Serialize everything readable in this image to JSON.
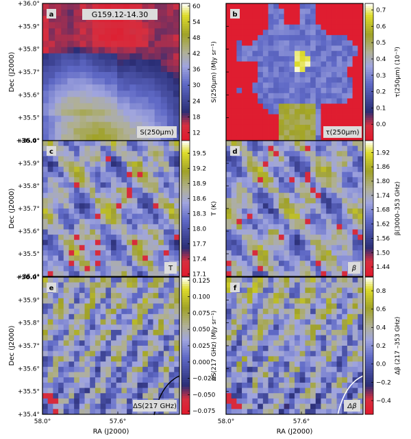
{
  "figure": {
    "bg": "#ffffff",
    "axis_labels": {
      "dec": "Dec (J2000)",
      "ra": "RA (J2000)"
    },
    "dec_ticks": [
      "+36.0°",
      "+35.9°",
      "+35.8°",
      "+35.7°",
      "+35.6°",
      "+35.5°",
      "+35.4°"
    ],
    "ra_ticks": [
      "58.0°",
      "57.6°"
    ]
  },
  "chart_data": [
    {
      "type": "heatmap",
      "panel": "a",
      "title": "G159.12-14.30",
      "map_label": "S(250μm)",
      "colorbar_label": "S(250μm) (MJy sr⁻¹)",
      "colorbar_ticks": [
        "60",
        "54",
        "48",
        "42",
        "36",
        "30",
        "24",
        "18",
        "12"
      ],
      "range": [
        9,
        61
      ],
      "pattern": "brightness_gradient"
    },
    {
      "type": "heatmap",
      "panel": "b",
      "map_label": "τ(250μm)",
      "colorbar_label": "τ(250μm) (10⁻³)",
      "colorbar_ticks": [
        "0.7",
        "0.6",
        "0.5",
        "0.4",
        "0.3",
        "0.2",
        "0.1",
        "0.0"
      ],
      "range": [
        -0.1,
        0.74
      ],
      "pattern": "tau_blob"
    },
    {
      "type": "heatmap",
      "panel": "c",
      "map_label": "T",
      "colorbar_label": "T (K)",
      "colorbar_ticks": [
        "19.5",
        "19.2",
        "18.9",
        "18.6",
        "18.3",
        "18.0",
        "17.7",
        "17.4",
        "17.1"
      ],
      "range": [
        17.05,
        19.75
      ],
      "pattern": "patchy"
    },
    {
      "type": "heatmap",
      "panel": "d",
      "map_label": "β",
      "colorbar_label": "β(3000–353 GHz)",
      "colorbar_ticks": [
        "1.92",
        "1.86",
        "1.80",
        "1.74",
        "1.68",
        "1.62",
        "1.56",
        "1.50",
        "1.44"
      ],
      "range": [
        1.4,
        1.97
      ],
      "pattern": "patchy"
    },
    {
      "type": "heatmap",
      "panel": "e",
      "map_label": "ΔS(217 GHz)",
      "colorbar_label": "ΔS(217 GHz) (MJy sr⁻¹)",
      "colorbar_ticks": [
        "0.125",
        "0.100",
        "0.075",
        "0.050",
        "0.025",
        "0.000",
        "−0.025",
        "−0.050",
        "−0.075"
      ],
      "range": [
        -0.08,
        0.13
      ],
      "pattern": "noisy"
    },
    {
      "type": "heatmap",
      "panel": "f",
      "map_label": "Δβ",
      "colorbar_label": "Δβ (217 –353 GHz)",
      "colorbar_ticks": [
        "0.8",
        "0.6",
        "0.4",
        "0.2",
        "0.0",
        "−0.2",
        "−0.4"
      ],
      "range": [
        -0.55,
        0.95
      ],
      "pattern": "noisy"
    }
  ]
}
